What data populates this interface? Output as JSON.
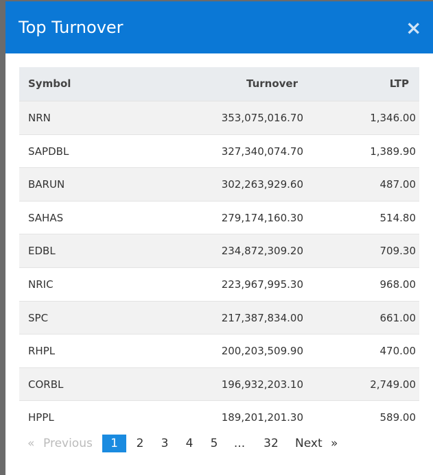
{
  "header": {
    "title": "Top Turnover",
    "close": "×"
  },
  "table": {
    "columns": [
      "Symbol",
      "Turnover",
      "LTP"
    ],
    "rows": [
      [
        "NRN",
        "353,075,016.70",
        "1,346.00"
      ],
      [
        "SAPDBL",
        "327,340,074.70",
        "1,389.90"
      ],
      [
        "BARUN",
        "302,263,929.60",
        "487.00"
      ],
      [
        "SAHAS",
        "279,174,160.30",
        "514.80"
      ],
      [
        "EDBL",
        "234,872,309.20",
        "709.30"
      ],
      [
        "NRIC",
        "223,967,995.30",
        "968.00"
      ],
      [
        "SPC",
        "217,387,834.00",
        "661.00"
      ],
      [
        "RHPL",
        "200,203,509.90",
        "470.00"
      ],
      [
        "CORBL",
        "196,932,203.10",
        "2,749.00"
      ],
      [
        "HPPL",
        "189,201,201.30",
        "589.00"
      ]
    ]
  },
  "pagination": {
    "first": "«",
    "previous": "Previous",
    "pages": [
      "1",
      "2",
      "3",
      "4",
      "5",
      "...",
      "32"
    ],
    "next": "Next",
    "last": "»"
  }
}
